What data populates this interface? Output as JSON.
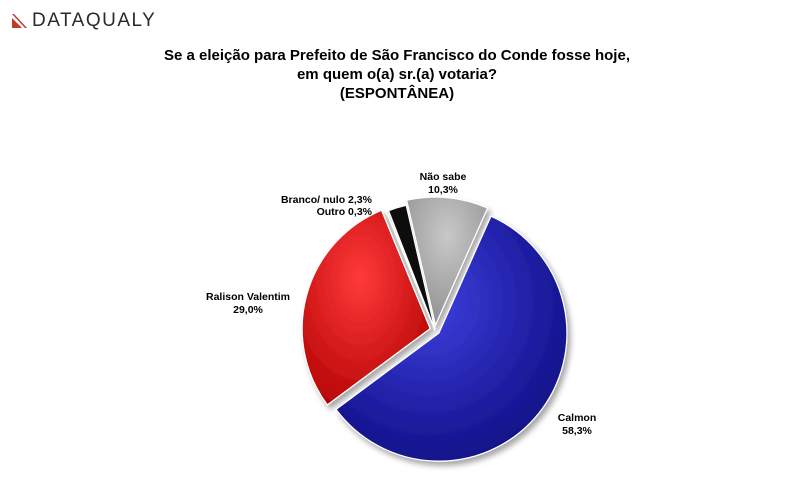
{
  "brand": {
    "name": "DATAQUALY",
    "accent": "#c0392b"
  },
  "title": {
    "line1": "Se a eleição para Prefeito de São Francisco do Conde fosse hoje,",
    "line2": "em quem o(a) sr.(a) votaria?",
    "line3": "(ESPONTÂNEA)"
  },
  "chart_data": {
    "type": "pie",
    "legend": "none",
    "slices": [
      {
        "label": "Calmon",
        "value_label": "58,3%",
        "value": 58.3,
        "color": "#1a1ab0"
      },
      {
        "label": "Ralison Valentim",
        "value_label": "29,0%",
        "value": 29.0,
        "color": "#e60000"
      },
      {
        "label": "Outro",
        "value_label": "0,3%",
        "value": 0.3,
        "color": "#ffffff"
      },
      {
        "label": "Branco/ nulo",
        "value_label": "2,3%",
        "value": 2.3,
        "color": "#111111"
      },
      {
        "label": "Não sabe",
        "value_label": "10,3%",
        "value": 10.3,
        "color": "#a6a6a6"
      }
    ],
    "combined_label": "Branco/ nulo 2,3%",
    "outro_label": "Outro 0,3%"
  }
}
